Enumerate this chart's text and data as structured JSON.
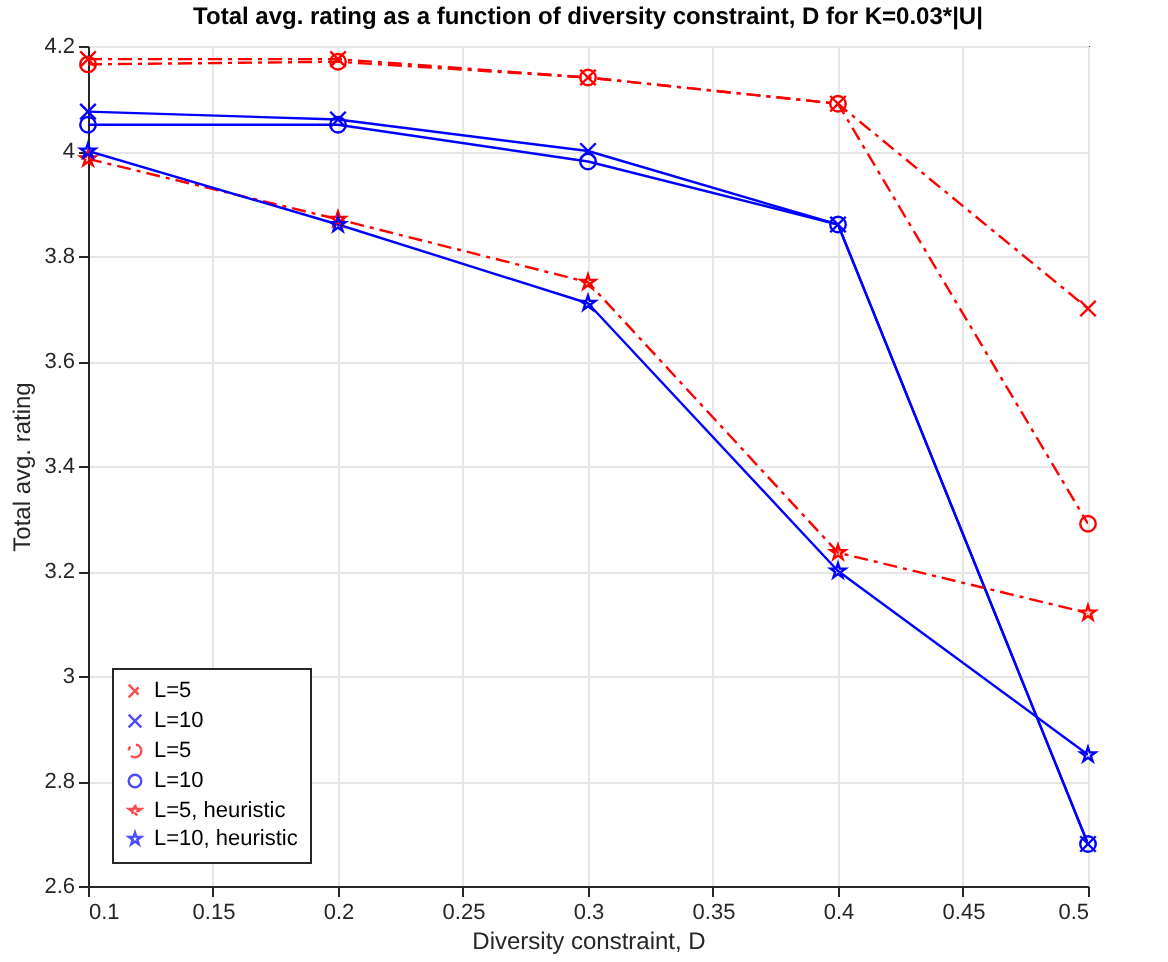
{
  "chart_data": {
    "type": "line",
    "title": "Total avg. rating as a function of diversity constraint, D for K=0.03*|U|",
    "xlabel": "Diversity constraint, D",
    "ylabel": "Total avg. rating",
    "x": [
      0.1,
      0.2,
      0.3,
      0.4,
      0.5
    ],
    "series": [
      {
        "name": "L=5",
        "color": "#ff0000",
        "marker": "cross",
        "line_style": "dashed",
        "values": [
          4.175,
          4.175,
          4.14,
          4.09,
          3.7
        ]
      },
      {
        "name": "L=10",
        "color": "#0000ff",
        "marker": "cross",
        "line_style": "solid",
        "values": [
          4.075,
          4.06,
          4.0,
          3.86,
          2.68
        ]
      },
      {
        "name": "L=5",
        "color": "#ff0000",
        "marker": "circle",
        "line_style": "dashed",
        "values": [
          4.165,
          4.17,
          4.14,
          4.09,
          3.29
        ]
      },
      {
        "name": "L=10",
        "color": "#0000ff",
        "marker": "circle",
        "line_style": "solid",
        "values": [
          4.05,
          4.05,
          3.98,
          3.86,
          2.68
        ]
      },
      {
        "name": "L=5, heuristic",
        "color": "#ff0000",
        "marker": "star",
        "line_style": "dashed",
        "values": [
          3.985,
          3.87,
          3.75,
          3.235,
          3.12
        ]
      },
      {
        "name": "L=10, heuristic",
        "color": "#0000ff",
        "marker": "star",
        "line_style": "solid",
        "values": [
          4.0,
          3.86,
          3.71,
          3.2,
          2.85
        ]
      }
    ],
    "xlim": [
      0.1,
      0.5
    ],
    "xticks": [
      0.1,
      0.15,
      0.2,
      0.25,
      0.3,
      0.35,
      0.4,
      0.45,
      0.5
    ],
    "ylim": [
      2.6,
      4.2
    ],
    "yticks": [
      2.6,
      2.8,
      3,
      3.2,
      3.4,
      3.6,
      3.8,
      4,
      4.2
    ],
    "grid": true,
    "legend": "bottom left"
  }
}
